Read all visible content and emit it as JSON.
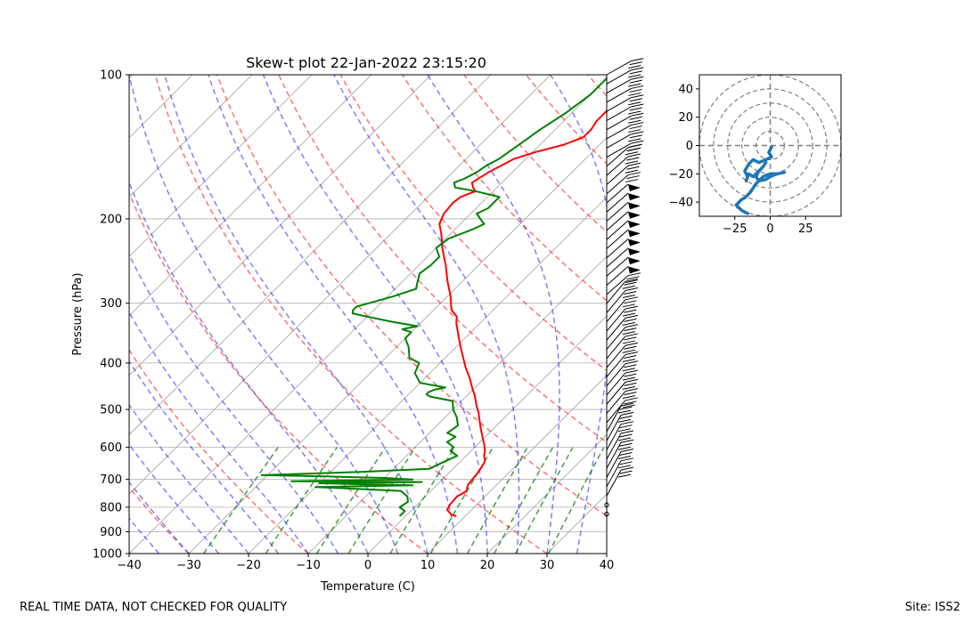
{
  "chart_data": [
    {
      "type": "line",
      "title": "Skew-t plot 22-Jan-2022 23:15:20",
      "xlabel": "Temperature (C)",
      "ylabel": "Pressure (hPa)",
      "xlim": [
        -40,
        40
      ],
      "ylim": [
        1000,
        100
      ],
      "y_scale": "log",
      "x_ticks": [
        -40,
        -30,
        -20,
        -10,
        0,
        10,
        20,
        30,
        40
      ],
      "y_ticks": [
        100,
        200,
        300,
        400,
        500,
        600,
        700,
        800,
        900,
        1000
      ],
      "skew_reference_lines": "isotherms (gray, solid)",
      "dry_adiabats": "red, dashed",
      "moist_adiabats": "blue, dashed",
      "mixing_ratio_lines": "green, dashed",
      "grid": true,
      "series": [
        {
          "color": "#ff0000",
          "p": [
            835,
            830,
            810,
            790,
            760,
            740,
            720,
            700,
            680,
            660,
            640,
            625,
            610,
            590,
            570,
            550,
            530,
            510,
            490,
            470,
            450,
            430,
            410,
            390,
            370,
            350,
            330,
            320,
            310,
            290,
            270,
            250,
            230,
            215,
            205,
            195,
            185,
            180,
            175,
            172,
            168,
            160,
            150,
            145,
            140,
            135,
            130,
            125,
            120,
            115,
            110,
            105,
            100
          ],
          "t": [
            8.5,
            7.5,
            5.9,
            5.5,
            5.3,
            6.0,
            5.2,
            5.0,
            4.8,
            4.5,
            4.0,
            3.0,
            2.3,
            1.0,
            -0.5,
            -2.0,
            -3.5,
            -5.0,
            -6.8,
            -8.5,
            -10.5,
            -12.5,
            -14.8,
            -17.0,
            -19.3,
            -21.6,
            -24.0,
            -25.0,
            -27.0,
            -29.5,
            -32.5,
            -35.5,
            -39.0,
            -41.5,
            -43.5,
            -44.5,
            -44.8,
            -44.5,
            -43.0,
            -44.0,
            -45.0,
            -44.0,
            -42.0,
            -39.5,
            -36.0,
            -34.0,
            -34.0,
            -34.5,
            -34.5,
            -34.5,
            -35.0,
            -36.0,
            -36.0
          ]
        },
        {
          "color": "#008000",
          "p": [
            835,
            815,
            800,
            780,
            760,
            740,
            726,
            720,
            713,
            709,
            706,
            700,
            695,
            690,
            686,
            675,
            665,
            640,
            625,
            610,
            600,
            585,
            570,
            560,
            540,
            520,
            500,
            480,
            470,
            465,
            460,
            455,
            450,
            440,
            420,
            400,
            390,
            370,
            355,
            345,
            340,
            335,
            328,
            320,
            315,
            310,
            305,
            300,
            290,
            280,
            270,
            260,
            250,
            240,
            230,
            220,
            210,
            205,
            200,
            195,
            190,
            185,
            180,
            175,
            172,
            168,
            165,
            160,
            155,
            150,
            140,
            130,
            120,
            110,
            100
          ],
          "t": [
            -1.0,
            -1.0,
            -2.5,
            -2.0,
            -3.0,
            -5.0,
            -20.0,
            -4.0,
            -20.0,
            -3.0,
            -25.0,
            -5.0,
            -10.0,
            -20.0,
            -31.0,
            -15.0,
            -4.0,
            -2.5,
            -1.5,
            -3.5,
            -3.5,
            -5.5,
            -5.0,
            -7.0,
            -6.5,
            -8.0,
            -10.0,
            -11.5,
            -16.0,
            -17.0,
            -17.0,
            -16.5,
            -15.0,
            -20.0,
            -22.5,
            -23.5,
            -26.0,
            -28.0,
            -30.0,
            -30.0,
            -32.0,
            -30.0,
            -35.0,
            -40.0,
            -43.0,
            -43.5,
            -43.5,
            -42.0,
            -39.0,
            -36.5,
            -37.5,
            -38.5,
            -38.0,
            -38.0,
            -40.0,
            -39.5,
            -37.0,
            -36.0,
            -37.5,
            -39.0,
            -38.0,
            -38.0,
            -38.0,
            -43.0,
            -47.0,
            -48.0,
            -47.0,
            -46.0,
            -45.5,
            -44.5,
            -43.5,
            -42.5,
            -41.0,
            -40.0,
            -40.0
          ]
        }
      ]
    },
    {
      "type": "line",
      "title": "",
      "xlim": [
        -50,
        50
      ],
      "ylim": [
        -50,
        50
      ],
      "x_ticks": [
        -25,
        0,
        25
      ],
      "y_ticks": [
        -40,
        -20,
        0,
        20,
        40
      ],
      "grid": "concentric dashed rings, dashed center cross",
      "series": [
        {
          "color": "#1f77b4",
          "x": [
            1,
            0,
            -1,
            1,
            -3,
            -8,
            -12,
            -15,
            -18,
            -16,
            -17,
            -15,
            -12,
            -10,
            -8,
            -5,
            -3,
            -5,
            -8,
            -10,
            -8,
            -5,
            0,
            5,
            10,
            5,
            0,
            -3,
            -8,
            -10,
            -12,
            -14,
            -16,
            -18,
            -20,
            -22,
            -24,
            -22,
            -20,
            -18,
            -16
          ],
          "y": [
            -1,
            -3,
            -5,
            -8,
            -10,
            -12,
            -10,
            -13,
            -18,
            -22,
            -25,
            -20,
            -22,
            -20,
            -18,
            -15,
            -12,
            -15,
            -18,
            -22,
            -25,
            -22,
            -20,
            -20,
            -19,
            -20,
            -22,
            -24,
            -25,
            -27,
            -30,
            -33,
            -35,
            -37,
            -38,
            -40,
            -42,
            -44,
            -46,
            -47,
            -48
          ]
        }
      ]
    }
  ],
  "footer": {
    "left_note": "REAL TIME DATA, NOT CHECKED FOR QUALITY",
    "site": "Site: ISS2"
  }
}
